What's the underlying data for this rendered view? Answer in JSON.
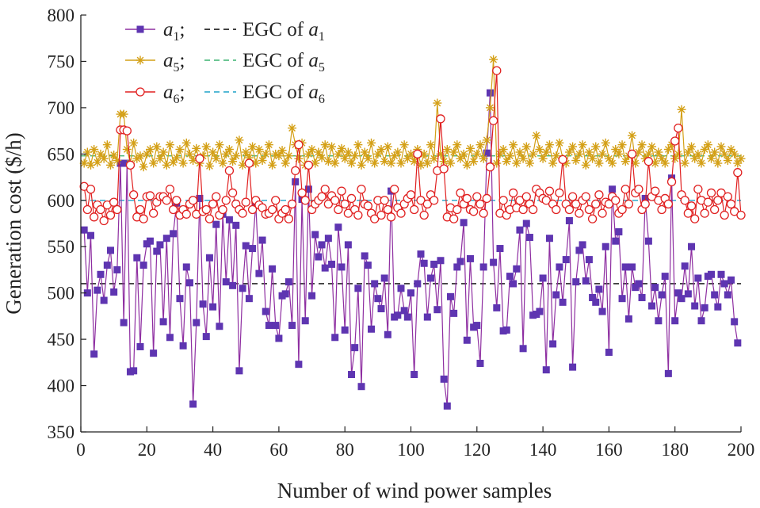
{
  "chart_data": {
    "type": "line",
    "xlabel": "Number of wind power samples",
    "ylabel": "Generation cost ($/h)",
    "xlim": [
      0,
      200
    ],
    "ylim": [
      350,
      800
    ],
    "xticks": [
      0,
      20,
      40,
      60,
      80,
      100,
      120,
      140,
      160,
      180,
      200
    ],
    "yticks": [
      350,
      400,
      450,
      500,
      550,
      600,
      650,
      700,
      750,
      800
    ],
    "grid": false,
    "legend_position": "top-left",
    "legend": [
      {
        "series": "a1",
        "label_main": "a",
        "label_sub": "1",
        "egc_text": "EGC of ",
        "egc_main": "a",
        "egc_sub": "1"
      },
      {
        "series": "a5",
        "label_main": "a",
        "label_sub": "5",
        "egc_text": "EGC of ",
        "egc_main": "a",
        "egc_sub": "5"
      },
      {
        "series": "a6",
        "label_main": "a",
        "label_sub": "6",
        "egc_text": "EGC of ",
        "egc_main": "a",
        "egc_sub": "6"
      }
    ],
    "series": [
      {
        "name": "a1",
        "color": "#8e2ea1",
        "marker": "square",
        "marker_color": "#5e35b1",
        "egc": 510,
        "egc_color": "#000000",
        "values": [
          568,
          500,
          562,
          434,
          503,
          520,
          492,
          530,
          546,
          501,
          525,
          640,
          468,
          640,
          415,
          416,
          538,
          442,
          530,
          553,
          556,
          435,
          545,
          552,
          469,
          559,
          452,
          564,
          597,
          494,
          443,
          528,
          511,
          380,
          468,
          602,
          488,
          453,
          538,
          485,
          574,
          464,
          585,
          512,
          579,
          508,
          573,
          416,
          505,
          551,
          494,
          548,
          596,
          521,
          557,
          480,
          465,
          526,
          465,
          451,
          497,
          499,
          512,
          465,
          620,
          423,
          601,
          470,
          612,
          497,
          563,
          539,
          552,
          527,
          559,
          531,
          452,
          571,
          528,
          460,
          552,
          412,
          441,
          505,
          399,
          540,
          530,
          461,
          510,
          494,
          483,
          516,
          455,
          610,
          474,
          476,
          505,
          481,
          474,
          500,
          412,
          510,
          542,
          532,
          474,
          516,
          531,
          482,
          535,
          407,
          378,
          496,
          478,
          528,
          534,
          576,
          449,
          537,
          463,
          465,
          424,
          528,
          651,
          716,
          533,
          484,
          548,
          459,
          460,
          518,
          510,
          526,
          568,
          440,
          575,
          560,
          476,
          477,
          480,
          516,
          417,
          559,
          445,
          498,
          528,
          490,
          536,
          578,
          420,
          512,
          546,
          552,
          513,
          536,
          495,
          490,
          504,
          480,
          550,
          436,
          612,
          556,
          566,
          494,
          528,
          472,
          528,
          506,
          510,
          495,
          602,
          556,
          486,
          506,
          470,
          498,
          518,
          413,
          624,
          470,
          500,
          494,
          529,
          499,
          550,
          486,
          516,
          470,
          484,
          518,
          520,
          498,
          485,
          520,
          510,
          498,
          514,
          469,
          446
        ]
      },
      {
        "name": "a5",
        "color": "#d4a017",
        "marker": "asterisk",
        "marker_color": "#d4a017",
        "egc": 648,
        "egc_color": "#3cb371",
        "values": [
          640,
          652,
          638,
          655,
          641,
          650,
          645,
          660,
          638,
          649,
          643,
          693,
          693,
          655,
          640,
          662,
          645,
          648,
          636,
          650,
          655,
          640,
          658,
          645,
          652,
          638,
          660,
          641,
          646,
          655,
          640,
          662,
          650,
          643,
          656,
          640,
          648,
          658,
          637,
          652,
          645,
          660,
          640,
          650,
          655,
          642,
          648,
          665,
          638,
          652,
          646,
          658,
          640,
          655,
          643,
          650,
          660,
          638,
          650,
          648,
          654,
          640,
          648,
          678,
          660,
          645,
          662,
          638,
          650,
          655,
          640,
          652,
          646,
          660,
          642,
          658,
          640,
          650,
          656,
          645,
          652,
          640,
          648,
          660,
          638,
          652,
          645,
          662,
          640,
          650,
          655,
          642,
          658,
          640,
          648,
          652,
          640,
          660,
          645,
          650,
          642,
          655,
          638,
          650,
          640,
          660,
          645,
          705,
          650,
          642,
          655,
          640,
          652,
          660,
          645,
          650,
          638,
          656,
          642,
          650,
          660,
          645,
          665,
          700,
          752,
          640,
          650,
          655,
          642,
          648,
          660,
          640,
          652,
          645,
          658,
          640,
          650,
          670,
          655,
          645,
          652,
          660,
          640,
          648,
          662,
          645,
          640,
          652,
          658,
          643,
          650,
          660,
          638,
          652,
          645,
          658,
          640,
          650,
          662,
          645,
          640,
          655,
          650,
          660,
          642,
          648,
          670,
          640,
          652,
          660,
          645,
          650,
          658,
          640,
          652,
          645,
          640,
          655,
          660,
          645,
          650,
          698,
          640,
          652,
          658,
          645,
          650,
          640,
          655,
          660,
          645,
          652,
          640,
          658,
          650,
          643,
          655,
          650,
          640,
          645
        ]
      },
      {
        "name": "a6",
        "color": "#e02020",
        "marker": "circle",
        "marker_color": "#e02020",
        "egc": 600,
        "egc_color": "#1fa2c8",
        "values": [
          615,
          590,
          612,
          582,
          595,
          590,
          578,
          595,
          584,
          598,
          590,
          676,
          676,
          675,
          638,
          606,
          582,
          590,
          580,
          604,
          605,
          586,
          598,
          604,
          604,
          600,
          612,
          590,
          600,
          584,
          590,
          585,
          596,
          600,
          585,
          645,
          588,
          590,
          580,
          596,
          604,
          584,
          590,
          600,
          632,
          608,
          596,
          590,
          586,
          598,
          640,
          590,
          600,
          595,
          592,
          585,
          586,
          590,
          600,
          580,
          586,
          590,
          580,
          596,
          632,
          660,
          608,
          600,
          638,
          590,
          596,
          600,
          604,
          612,
          596,
          605,
          600,
          590,
          610,
          596,
          586,
          602,
          590,
          584,
          612,
          596,
          594,
          586,
          580,
          600,
          584,
          600,
          590,
          582,
          612,
          592,
          586,
          596,
          602,
          606,
          590,
          650,
          600,
          584,
          596,
          606,
          600,
          632,
          688,
          634,
          582,
          592,
          580,
          590,
          608,
          596,
          602,
          590,
          588,
          604,
          596,
          586,
          602,
          636,
          686,
          740,
          586,
          600,
          584,
          590,
          608,
          592,
          600,
          590,
          604,
          596,
          590,
          612,
          608,
          602,
          600,
          610,
          596,
          590,
          608,
          644,
          596,
          590,
          604,
          596,
          586,
          600,
          604,
          590,
          580,
          596,
          606,
          586,
          598,
          596,
          604,
          600,
          586,
          590,
          612,
          596,
          650,
          608,
          612,
          590,
          596,
          642,
          604,
          610,
          600,
          590,
          602,
          596,
          620,
          664,
          678,
          606,
          600,
          586,
          594,
          580,
          612,
          600,
          586,
          598,
          608,
          590,
          600,
          608,
          584,
          604,
          596,
          588,
          630,
          584
        ]
      }
    ]
  }
}
